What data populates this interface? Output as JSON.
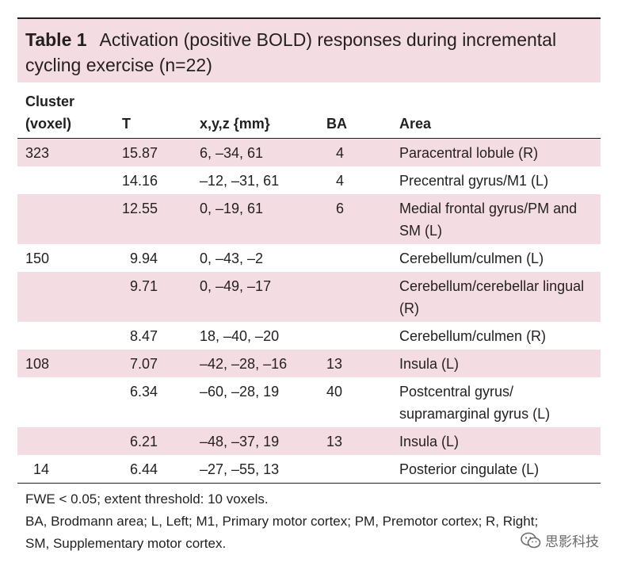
{
  "table": {
    "label": "Table 1",
    "title": "Activation (positive BOLD) responses during incremental cycling exercise (n=22)",
    "headers": {
      "cluster": "Cluster (voxel)",
      "t": "T",
      "coords": "x,y,z {mm}",
      "ba": "BA",
      "area": "Area"
    },
    "rows": [
      {
        "cluster": "323",
        "t": "15.87",
        "coords": "6, –34, 61",
        "ba": "4",
        "area": "Paracentral lobule (R)"
      },
      {
        "cluster": "",
        "t": "14.16",
        "coords": "–12, –31, 61",
        "ba": "4",
        "area": "Precentral gyrus/M1 (L)"
      },
      {
        "cluster": "",
        "t": "12.55",
        "coords": "0, –19, 61",
        "ba": "6",
        "area": "Medial frontal gyrus/PM and SM (L)"
      },
      {
        "cluster": "150",
        "t": "9.94",
        "coords": "0, –43, –2",
        "ba": "",
        "area": "Cerebellum/culmen (L)"
      },
      {
        "cluster": "",
        "t": "9.71",
        "coords": "0, –49, –17",
        "ba": "",
        "area": "Cerebellum/cerebellar lingual (R)"
      },
      {
        "cluster": "",
        "t": "8.47",
        "coords": "18, –40, –20",
        "ba": "",
        "area": "Cerebellum/culmen (R)"
      },
      {
        "cluster": "108",
        "t": "7.07",
        "coords": "–42, –28, –16",
        "ba": "13",
        "area": "Insula (L)"
      },
      {
        "cluster": "",
        "t": "6.34",
        "coords": "–60, –28, 19",
        "ba": "40",
        "area": "Postcentral gyrus/ supramarginal gyrus (L)"
      },
      {
        "cluster": "",
        "t": "6.21",
        "coords": "–48, –37, 19",
        "ba": "13",
        "area": "Insula (L)"
      },
      {
        "cluster": "14",
        "t": "6.44",
        "coords": "–27, –55, 13",
        "ba": "",
        "area": "Posterior cingulate (L)"
      }
    ],
    "footnotes": [
      "FWE < 0.05; extent threshold: 10 voxels.",
      "BA, Brodmann area; L, Left; M1, Primary motor cortex; PM, Premotor cortex; R, Right; SM, Supplementary motor cortex."
    ]
  },
  "watermark": {
    "icon": "wechat-icon",
    "text": "思影科技"
  },
  "colors": {
    "highlight": "#f4dde2",
    "text": "#231f20"
  }
}
